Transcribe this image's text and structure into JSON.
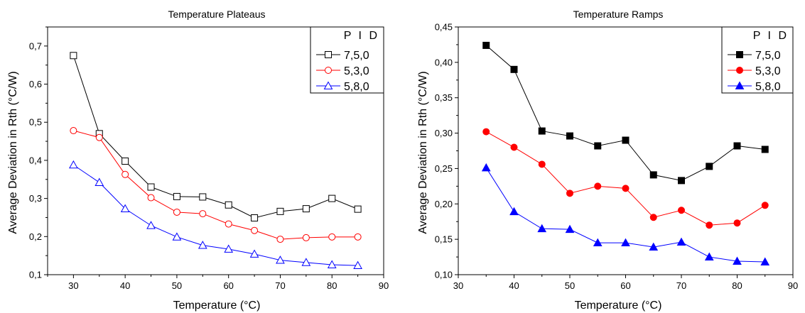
{
  "chart_data": [
    {
      "type": "line",
      "title": "Temperature Plateaus",
      "xlabel": "Temperature (°C)",
      "ylabel": "Average Deviation in Rth (°C/W)",
      "xlim": [
        25,
        90
      ],
      "ylim": [
        0.1,
        0.75
      ],
      "xticks": [
        30,
        40,
        50,
        60,
        70,
        80,
        90
      ],
      "yticks": [
        0.1,
        0.2,
        0.3,
        0.4,
        0.5,
        0.6,
        0.7
      ],
      "ytick_labels": [
        "0,1",
        "0,2",
        "0,3",
        "0,4",
        "0,5",
        "0,6",
        "0,7"
      ],
      "legend_title": "P I D",
      "legend_position": "top-right",
      "x": [
        30,
        35,
        40,
        45,
        50,
        55,
        60,
        65,
        70,
        75,
        80,
        85
      ],
      "series": [
        {
          "name": "7,5,0",
          "color": "#000000",
          "marker": "square-open",
          "values": [
            0.675,
            0.47,
            0.398,
            0.33,
            0.305,
            0.304,
            0.283,
            0.249,
            0.266,
            0.273,
            0.3,
            0.272
          ]
        },
        {
          "name": "5,3,0",
          "color": "#ff0000",
          "marker": "circle-open",
          "values": [
            0.478,
            0.46,
            0.363,
            0.302,
            0.264,
            0.26,
            0.233,
            0.216,
            0.193,
            0.197,
            0.199,
            0.199
          ]
        },
        {
          "name": "5,8,0",
          "color": "#0000ff",
          "marker": "triangle-open",
          "values": [
            0.388,
            0.342,
            0.273,
            0.229,
            0.199,
            0.177,
            0.167,
            0.154,
            0.138,
            0.132,
            0.126,
            0.124
          ]
        }
      ]
    },
    {
      "type": "line",
      "title": "Temperature Ramps",
      "xlabel": "Temperature (°C)",
      "ylabel": "Average Deviation in Rth (°C/W)",
      "xlim": [
        30,
        90
      ],
      "ylim": [
        0.1,
        0.45
      ],
      "xticks": [
        30,
        40,
        50,
        60,
        70,
        80,
        90
      ],
      "yticks": [
        0.1,
        0.15,
        0.2,
        0.25,
        0.3,
        0.35,
        0.4,
        0.45
      ],
      "ytick_labels": [
        "0,10",
        "0,15",
        "0,20",
        "0,25",
        "0,30",
        "0,35",
        "0,40",
        "0,45"
      ],
      "legend_title": "P I D",
      "legend_position": "top-right",
      "x": [
        35,
        40,
        45,
        50,
        55,
        60,
        65,
        70,
        75,
        80,
        85
      ],
      "series": [
        {
          "name": "7,5,0",
          "color": "#000000",
          "marker": "square-filled",
          "values": [
            0.424,
            0.39,
            0.303,
            0.296,
            0.282,
            0.29,
            0.241,
            0.233,
            0.253,
            0.282,
            0.277
          ]
        },
        {
          "name": "5,3,0",
          "color": "#ff0000",
          "marker": "circle-filled",
          "values": [
            0.302,
            0.28,
            0.256,
            0.215,
            0.225,
            0.222,
            0.181,
            0.191,
            0.17,
            0.173,
            0.198
          ]
        },
        {
          "name": "5,8,0",
          "color": "#0000ff",
          "marker": "triangle-filled",
          "values": [
            0.251,
            0.189,
            0.165,
            0.164,
            0.145,
            0.145,
            0.139,
            0.146,
            0.125,
            0.119,
            0.118
          ]
        }
      ]
    }
  ]
}
